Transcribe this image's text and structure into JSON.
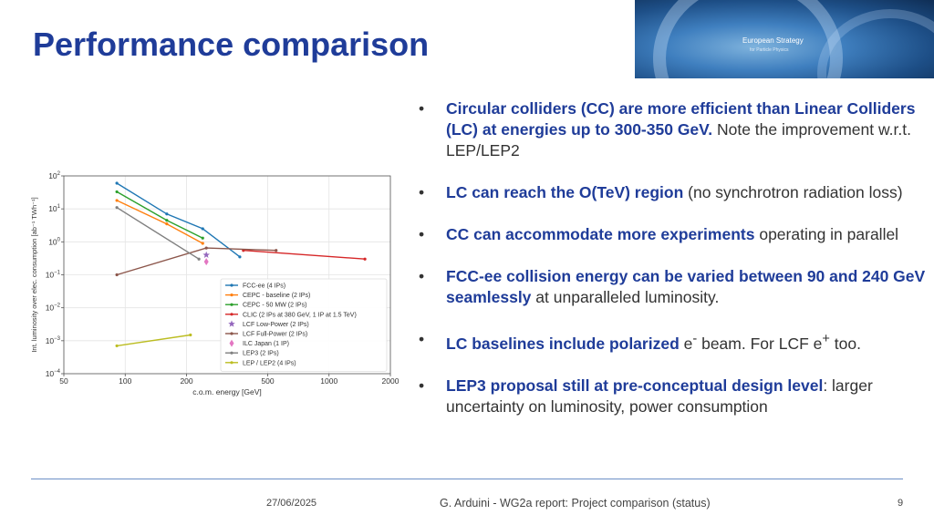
{
  "slide": {
    "title": "Performance comparison",
    "banner": {
      "logo_text": "European Strategy",
      "logo_subtext": "for Particle Physics"
    }
  },
  "bullets": [
    {
      "bold": "Circular colliders (CC) are more efficient than Linear Colliders (LC) at energies up to 300-350 GeV.",
      "text": " Note the improvement w.r.t. LEP/LEP2"
    },
    {
      "bold": "LC can reach the O(TeV) region",
      "text": " (no synchrotron radiation loss)"
    },
    {
      "bold": "CC can accommodate more experiments",
      "text": " operating in parallel"
    },
    {
      "bold": "FCC-ee collision energy can be varied between 90 and 240 GeV seamlessly",
      "text": " at unparalleled luminosity."
    },
    {
      "bold": "LC baselines include polarized",
      "text_a": " e",
      "sup_a": "-",
      "text_b": " beam. For LCF e",
      "sup_b": "+",
      "text_c": " too."
    },
    {
      "bold": "LEP3 proposal still at pre-conceptual design level",
      "text": ": larger uncertainty on luminosity, power consumption"
    }
  ],
  "footer": {
    "date": "27/06/2025",
    "text": "G. Arduini - WG2a report: Project comparison (status)",
    "page": "9"
  },
  "chart_data": {
    "type": "line",
    "xlabel": "c.o.m. energy [GeV]",
    "ylabel": "Int. luminosity over elec. consumption [ab⁻¹ TWh⁻¹]",
    "x_scale": "log",
    "y_scale": "log",
    "xlim": [
      50,
      2000
    ],
    "ylim": [
      0.0001,
      100
    ],
    "x_ticks": [
      50,
      100,
      200,
      500,
      1000,
      2000
    ],
    "x_tick_labels": [
      "50",
      "100",
      "200",
      "500",
      "1000",
      "2000"
    ],
    "y_ticks": [
      0.0001,
      0.001,
      0.01,
      0.1,
      1,
      10,
      100
    ],
    "y_tick_labels": [
      [
        "10",
        "−4"
      ],
      [
        "10",
        "−3"
      ],
      [
        "10",
        "−2"
      ],
      [
        "10",
        "−1"
      ],
      [
        "10",
        "0"
      ],
      [
        "10",
        "1"
      ],
      [
        "10",
        "2"
      ]
    ],
    "grid": true,
    "legend": "bottom-right",
    "series": [
      {
        "name": "FCC-ee (4 IPs)",
        "color": "#1f77b4",
        "marker": "dot",
        "x": [
          91,
          160,
          240,
          365
        ],
        "y": [
          60,
          7,
          2.5,
          0.35
        ]
      },
      {
        "name": "CEPC - baseline (2 IPs)",
        "color": "#ff7f0e",
        "marker": "dot",
        "x": [
          91,
          160,
          240
        ],
        "y": [
          18,
          3.5,
          0.9
        ]
      },
      {
        "name": "CEPC - 50 MW (2 IPs)",
        "color": "#2ca02c",
        "marker": "dot",
        "x": [
          91,
          160,
          240
        ],
        "y": [
          33,
          4.5,
          1.3
        ]
      },
      {
        "name": "CLIC (2 IPs at 380 GeV, 1 IP at 1.5 TeV)",
        "color": "#d62728",
        "marker": "dot",
        "x": [
          380,
          1500
        ],
        "y": [
          0.55,
          0.3
        ]
      },
      {
        "name": "LCF Low-Power (2 IPs)",
        "color": "#9467bd",
        "marker": "star",
        "x": [
          250
        ],
        "y": [
          0.4
        ]
      },
      {
        "name": "LCF Full-Power (2 IPs)",
        "color": "#8c564b",
        "marker": "dot",
        "x": [
          91,
          250,
          550
        ],
        "y": [
          0.1,
          0.65,
          0.55
        ]
      },
      {
        "name": "ILC Japan (1 IP)",
        "color": "#e377c2",
        "marker": "diamond",
        "x": [
          250
        ],
        "y": [
          0.25
        ]
      },
      {
        "name": "LEP3 (2 IPs)",
        "color": "#7f7f7f",
        "marker": "dot",
        "x": [
          91,
          230
        ],
        "y": [
          11,
          0.3
        ]
      },
      {
        "name": "LEP / LEP2 (4 IPs)",
        "color": "#bcbd22",
        "marker": "dot",
        "x": [
          91,
          209
        ],
        "y": [
          0.0007,
          0.0015
        ]
      }
    ]
  }
}
